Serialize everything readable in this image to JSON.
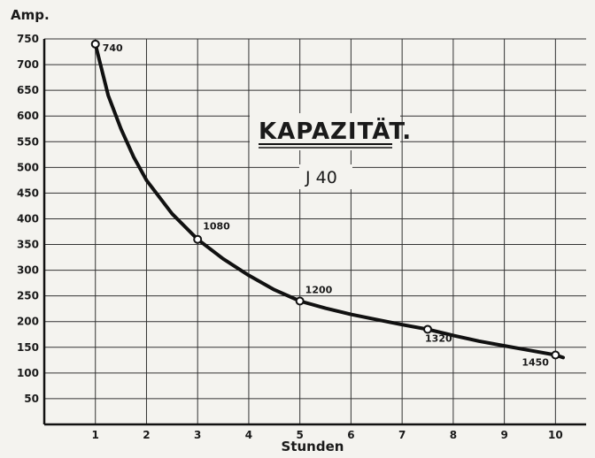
{
  "chart_data": {
    "type": "line",
    "title": "KAPAZITÄT.",
    "subtitle": "J 40",
    "xlabel": "Stunden",
    "ylabel": "Amp.",
    "xlim": [
      0,
      10.6
    ],
    "ylim": [
      0,
      750
    ],
    "xticks": [
      1,
      2,
      3,
      4,
      5,
      6,
      7,
      8,
      9,
      10
    ],
    "yticks": [
      50,
      100,
      150,
      200,
      250,
      300,
      350,
      400,
      450,
      500,
      550,
      600,
      650,
      700,
      750
    ],
    "grid": true,
    "points": [
      {
        "x": 1,
        "y": 740,
        "label": "740"
      },
      {
        "x": 3,
        "y": 360,
        "label": "1080"
      },
      {
        "x": 5,
        "y": 240,
        "label": "1200"
      },
      {
        "x": 7.5,
        "y": 185,
        "label": "1320"
      },
      {
        "x": 10,
        "y": 135,
        "label": "1450"
      }
    ],
    "curve": {
      "x": [
        1,
        1.25,
        1.5,
        1.75,
        2,
        2.5,
        3,
        3.5,
        4,
        4.5,
        5,
        5.5,
        6,
        6.5,
        7,
        7.5,
        8,
        8.5,
        9,
        9.5,
        10,
        10.15
      ],
      "y": [
        740,
        640,
        575,
        520,
        475,
        410,
        360,
        322,
        290,
        262,
        240,
        226,
        214,
        204,
        194,
        185,
        173,
        162,
        153,
        144,
        135,
        130
      ]
    }
  }
}
